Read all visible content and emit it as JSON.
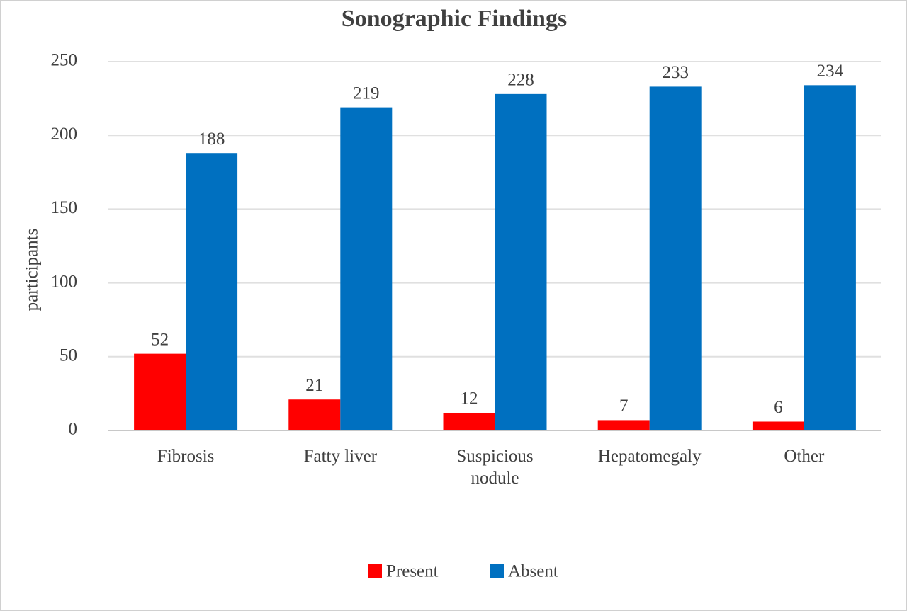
{
  "chart_data": {
    "type": "bar",
    "title": "Sonographic Findings",
    "y_label": "participants",
    "categories": [
      "Fibrosis",
      "Fatty liver",
      "Suspicious nodule",
      "Hepatomegaly",
      "Other"
    ],
    "series": [
      {
        "name": "Present",
        "color": "#ff0000",
        "values": [
          52,
          21,
          12,
          7,
          6
        ]
      },
      {
        "name": "Absent",
        "color": "#0070c0",
        "values": [
          188,
          219,
          228,
          233,
          234
        ]
      }
    ],
    "ylim": [
      0,
      250
    ],
    "yticks": [
      0,
      50,
      100,
      150,
      200,
      250
    ],
    "grid": true,
    "legend": "bottom"
  }
}
